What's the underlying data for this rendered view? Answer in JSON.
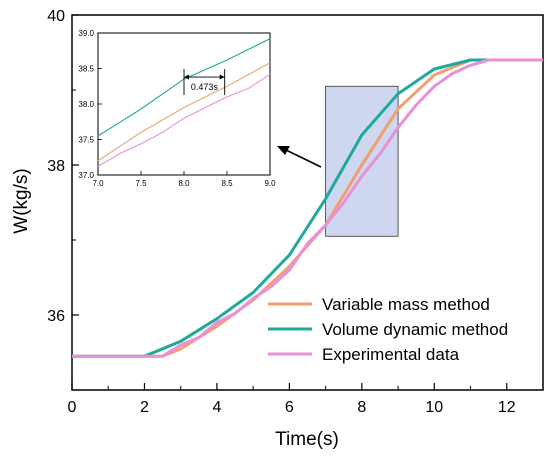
{
  "chart_data": [
    {
      "type": "line",
      "title": "",
      "xlabel": "Time(s)",
      "ylabel": "W(kg/s)",
      "xlim": [
        0,
        13
      ],
      "ylim": [
        35.0,
        40.0
      ],
      "xticks": [
        "0",
        "2",
        "4",
        "6",
        "8",
        "10",
        "12"
      ],
      "yticks": [
        "36",
        "38",
        "40"
      ],
      "legend_position": "bottom-right",
      "grid": false,
      "series": [
        {
          "name": "Variable mass method",
          "color": "#F0A070",
          "x": [
            0,
            1,
            2,
            2.5,
            3,
            4,
            5,
            6,
            7,
            8,
            9,
            10,
            11,
            11.5,
            12,
            13
          ],
          "y": [
            35.45,
            35.45,
            35.45,
            35.45,
            35.55,
            35.85,
            36.2,
            36.65,
            37.2,
            38.0,
            38.75,
            39.2,
            39.4,
            39.4,
            39.4,
            39.4
          ]
        },
        {
          "name": "Volume dynamic method",
          "color": "#1FA99B",
          "x": [
            0,
            1,
            2,
            2.5,
            3,
            4,
            5,
            6,
            7,
            8,
            9,
            10,
            11,
            11.5,
            12,
            13
          ],
          "y": [
            35.45,
            35.45,
            35.45,
            35.55,
            35.65,
            35.95,
            36.3,
            36.8,
            37.55,
            38.4,
            38.95,
            39.28,
            39.4,
            39.4,
            39.4,
            39.4
          ]
        },
        {
          "name": "Experimental data",
          "color": "#E890D8",
          "x": [
            0,
            1,
            2,
            2.5,
            3,
            3.5,
            4,
            4.5,
            5,
            5.5,
            6,
            6.5,
            7,
            7.5,
            8,
            8.5,
            9,
            9.5,
            10,
            10.5,
            11,
            11.5,
            12,
            13
          ],
          "y": [
            35.45,
            35.45,
            35.45,
            35.45,
            35.6,
            35.7,
            35.9,
            36.02,
            36.22,
            36.38,
            36.6,
            36.95,
            37.2,
            37.5,
            37.85,
            38.15,
            38.5,
            38.8,
            39.05,
            39.22,
            39.33,
            39.4,
            39.4,
            39.4
          ]
        }
      ],
      "highlight_region": {
        "x": [
          7.0,
          9.0
        ],
        "y": [
          37.05,
          39.05
        ],
        "color": "#C9D2EE"
      }
    },
    {
      "type": "line",
      "title": "",
      "xlim": [
        7.0,
        9.0
      ],
      "ylim": [
        37.0,
        39.0
      ],
      "xticks": [
        "7.0",
        "7.5",
        "8.0",
        "8.5",
        "9.0"
      ],
      "yticks": [
        "37.0",
        "37.5",
        "38.0",
        "38.5",
        "39.0"
      ],
      "annotation": {
        "text": "0.473s",
        "x_start": 8.0,
        "x_end": 8.473,
        "y": 38.38
      },
      "series": [
        {
          "color": "#F0A070",
          "x": [
            7.0,
            7.5,
            8.0,
            8.5,
            9.0
          ],
          "y": [
            37.2,
            37.6,
            37.95,
            38.25,
            38.58
          ]
        },
        {
          "color": "#1FA99B",
          "x": [
            7.0,
            7.5,
            8.0,
            8.5,
            9.0
          ],
          "y": [
            37.55,
            37.93,
            38.35,
            38.62,
            38.92
          ]
        },
        {
          "color": "#E890D8",
          "x": [
            7.0,
            7.25,
            7.5,
            7.75,
            8.0,
            8.25,
            8.5,
            8.75,
            9.0
          ],
          "y": [
            37.12,
            37.3,
            37.44,
            37.6,
            37.8,
            37.95,
            38.1,
            38.22,
            38.42
          ]
        }
      ]
    }
  ]
}
